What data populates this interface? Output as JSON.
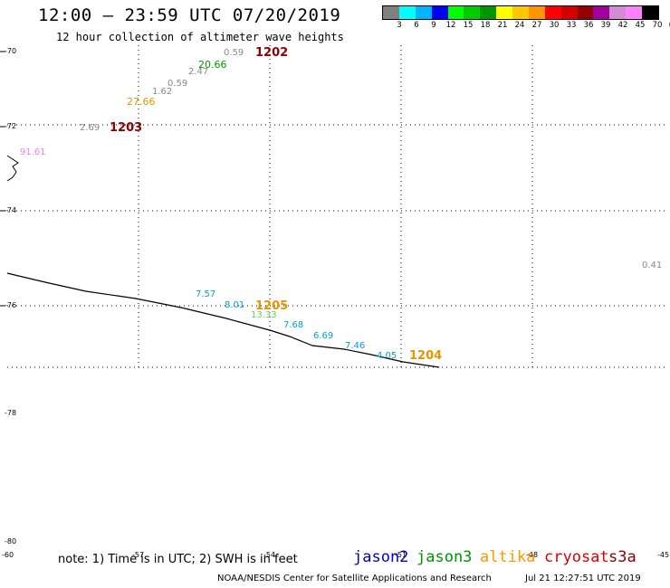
{
  "header": {
    "title": "12:00 – 23:59 UTC 07/20/2019",
    "subtitle": "12 hour collection of altimeter wave heights"
  },
  "legend": {
    "colors": [
      "#808080",
      "#00ffff",
      "#00b4ff",
      "#0000ff",
      "#00ff00",
      "#00cc00",
      "#009600",
      "#ffff00",
      "#ffc800",
      "#ff9600",
      "#ff0000",
      "#d20000",
      "#960000",
      "#a0009f",
      "#d28cd2",
      "#ff80ff",
      "#000000"
    ],
    "tick_labels": [
      "3",
      "6",
      "9",
      "12",
      "15",
      "18",
      "21",
      "24",
      "27",
      "30",
      "33",
      "36",
      "39",
      "42",
      "45",
      "70",
      "(ft)"
    ]
  },
  "map": {
    "lat_labels": [
      "-70",
      "-72",
      "-74",
      "-76",
      "-78",
      "-80"
    ],
    "lon_labels": [
      "-60",
      "-57",
      "-54",
      "-51",
      "-48",
      "-45"
    ],
    "satellite_ids": [
      "1202",
      "1203",
      "1205",
      "1204"
    ],
    "wave_heights": [
      {
        "v": "0.59",
        "c": "#888888"
      },
      {
        "v": "20.66",
        "c": "#009600"
      },
      {
        "v": "2.47",
        "c": "#888888"
      },
      {
        "v": "0.59",
        "c": "#888888"
      },
      {
        "v": "1.62",
        "c": "#888888"
      },
      {
        "v": "27.66",
        "c": "#e69500"
      },
      {
        "v": "2.69",
        "c": "#888888"
      },
      {
        "v": "91.61",
        "c": "#ee82ee"
      },
      {
        "v": "0.41",
        "c": "#888888"
      },
      {
        "v": "7.57",
        "c": "#00a0dc"
      },
      {
        "v": "8.01",
        "c": "#00a0dc"
      },
      {
        "v": "13.33",
        "c": "#66cc66"
      },
      {
        "v": "7.68",
        "c": "#00a0dc"
      },
      {
        "v": "6.69",
        "c": "#00a0dc"
      },
      {
        "v": "7.46",
        "c": "#00a0dc"
      },
      {
        "v": "4.05",
        "c": "#00a0dc"
      }
    ],
    "id_colors": [
      "#8b0000",
      "#8b0000",
      "#e69500",
      "#e69500"
    ]
  },
  "note": "note: 1) Time is in UTC; 2) SWH is in feet",
  "satellites": [
    {
      "name": "jason2",
      "color": "#0000cc"
    },
    {
      "name": "jason3",
      "color": "#009600"
    },
    {
      "name": "altika",
      "color": "#ff9900"
    },
    {
      "name": "cryosat",
      "color": "#dd0000"
    },
    {
      "name": "s3a",
      "color": "#8b0000"
    }
  ],
  "footer": {
    "credit": "NOAA/NESDIS Center for Satellite Applications and Research",
    "timestamp": "Jul 21 12:27:51 UTC 2019"
  }
}
